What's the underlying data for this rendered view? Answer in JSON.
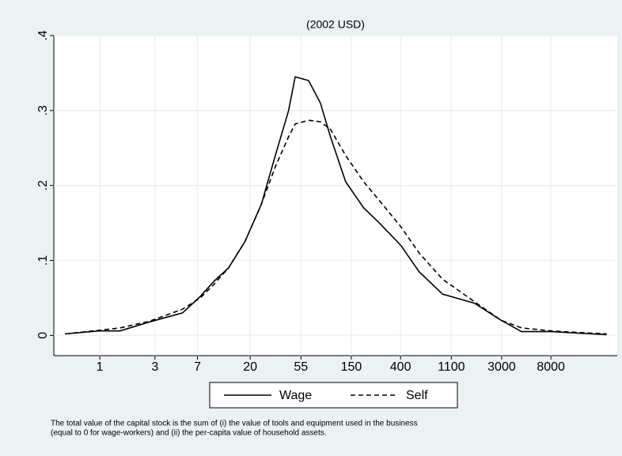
{
  "chart_data": {
    "type": "line",
    "title": "(2002 USD)",
    "xscale": "log",
    "x": [
      0.5,
      1,
      1.5,
      2.7,
      5.2,
      7.4,
      9.7,
      13,
      18,
      25,
      33,
      43,
      49,
      64,
      81,
      99,
      134,
      192,
      262,
      403,
      579,
      925,
      1740,
      2980,
      4450,
      8100,
      13400,
      24300
    ],
    "series": [
      {
        "name": "Wage",
        "color": "#000000",
        "dash": "solid",
        "values": [
          0.002,
          0.006,
          0.006,
          0.018,
          0.03,
          0.052,
          0.072,
          0.09,
          0.125,
          0.175,
          0.24,
          0.3,
          0.345,
          0.34,
          0.31,
          0.265,
          0.205,
          0.17,
          0.15,
          0.12,
          0.085,
          0.055,
          0.043,
          0.02,
          0.005,
          0.005,
          0.003,
          0.001
        ]
      },
      {
        "name": "Self",
        "color": "#000000",
        "dash": "dashed",
        "values": [
          0.002,
          0.007,
          0.01,
          0.019,
          0.035,
          0.05,
          0.068,
          0.09,
          0.125,
          0.175,
          0.225,
          0.265,
          0.282,
          0.287,
          0.285,
          0.275,
          0.24,
          0.205,
          0.18,
          0.145,
          0.11,
          0.075,
          0.045,
          0.02,
          0.01,
          0.006,
          0.004,
          0.002
        ]
      }
    ],
    "xlim": [
      0.4,
      30000
    ],
    "xticks": [
      1,
      3,
      7,
      20,
      55,
      150,
      400,
      1100,
      3000,
      8000
    ],
    "ylim": [
      -0.027,
      0.4
    ],
    "yticks": [
      0,
      {
        "value": 0.1,
        "label": ".1"
      },
      {
        "value": 0.2,
        "label": ".2"
      },
      {
        "value": 0.3,
        "label": ".3"
      },
      {
        "value": 0.4,
        "label": ".4"
      }
    ],
    "grid": true,
    "legend": "bottom",
    "notes": [
      "The total value of the capital stock is the sum of (i) the value of tools and equipment used in the business",
      "(equal to 0 for wage-workers) and (ii) the per-capita value of household assets."
    ]
  }
}
